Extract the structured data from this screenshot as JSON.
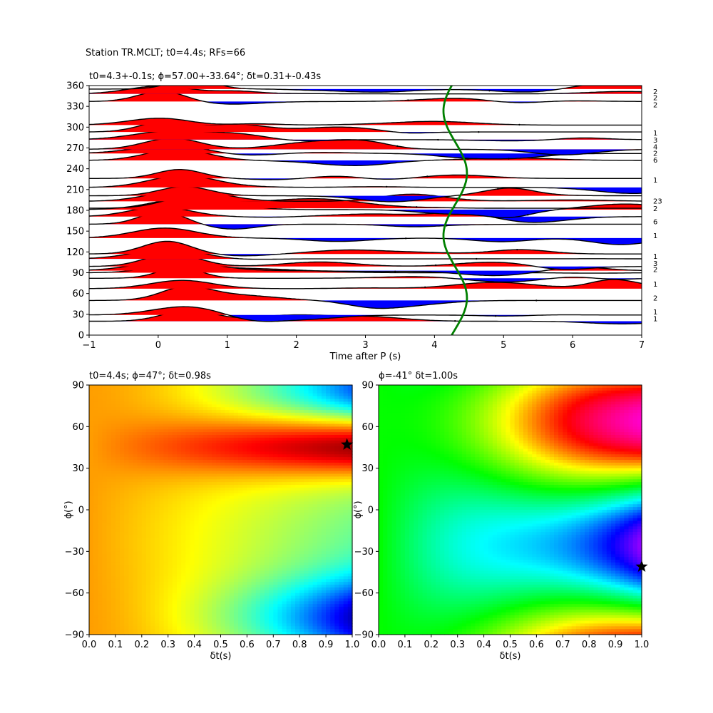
{
  "suptitle": "Station TR.MCLT; t0=4.4s; RFs=66",
  "chart_data": [
    {
      "type": "line",
      "title": "t0=4.3+-0.1s; ϕ=57.00+-33.64°; δt=0.31+-0.43s",
      "xlabel": "Time after P (s)",
      "ylabel": "",
      "xlim": [
        -1,
        7
      ],
      "ylim": [
        0,
        360
      ],
      "xticks": [
        "−1",
        "0",
        "1",
        "2",
        "3",
        "4",
        "5",
        "6",
        "7"
      ],
      "yticks": [
        "0",
        "30",
        "60",
        "90",
        "120",
        "150",
        "180",
        "210",
        "240",
        "270",
        "300",
        "330",
        "360"
      ],
      "fill_colors": {
        "positive": "#ff0000",
        "negative": "#0000ff"
      },
      "trace_color": "#000000",
      "curve_color": "#008000",
      "baz": [
        20,
        29,
        50,
        67,
        82,
        90,
        93,
        99,
        110,
        117,
        140,
        160,
        171,
        181,
        183,
        193,
        201,
        213,
        226,
        252,
        262,
        268,
        282,
        293,
        303,
        337,
        348,
        355
      ],
      "counts": [
        "1",
        "1",
        "2",
        "1",
        "2",
        "3",
        "1",
        "1",
        "1",
        "6",
        "2",
        "23",
        "23",
        "1",
        "3",
        "4",
        "2",
        "6",
        "2",
        "4",
        "3",
        "1",
        "2",
        "2",
        "1"
      ],
      "count_labels": [
        {
          "text": "1",
          "baz": 24
        },
        {
          "text": "1",
          "baz": 34
        },
        {
          "text": "2",
          "baz": 54
        },
        {
          "text": "1",
          "baz": 74
        },
        {
          "text": "2",
          "baz": 95
        },
        {
          "text": "3",
          "baz": 104
        },
        {
          "text": "1",
          "baz": 114
        },
        {
          "text": "1",
          "baz": 144
        },
        {
          "text": "6",
          "baz": 164
        },
        {
          "text": "2",
          "baz": 183
        },
        {
          "text": "23",
          "baz": 194
        },
        {
          "text": "1",
          "baz": 224
        },
        {
          "text": "6",
          "baz": 253
        },
        {
          "text": "2",
          "baz": 263
        },
        {
          "text": "4",
          "baz": 272
        },
        {
          "text": "3",
          "baz": 282
        },
        {
          "text": "1",
          "baz": 292
        },
        {
          "text": "2",
          "baz": 333
        },
        {
          "text": "2",
          "baz": 343
        },
        {
          "text": "2",
          "baz": 352
        }
      ],
      "curve": {
        "name": "",
        "t0": 4.3,
        "amplitude": 0.17,
        "phase_deg": 57
      }
    },
    {
      "type": "heatmap",
      "title": "t0=4.4s; ϕ=47°; δt=0.98s",
      "xlabel": "δt(s)",
      "ylabel": "ϕ(°)",
      "xlim": [
        0,
        1
      ],
      "ylim": [
        -90,
        90
      ],
      "xticks": [
        "0.0",
        "0.1",
        "0.2",
        "0.3",
        "0.4",
        "0.5",
        "0.6",
        "0.7",
        "0.8",
        "0.9",
        "1.0"
      ],
      "yticks": [
        "−90",
        "−60",
        "−30",
        "0",
        "30",
        "60",
        "90"
      ],
      "colormap": "jet",
      "best": {
        "dt": 0.98,
        "phi": 47
      }
    },
    {
      "type": "heatmap",
      "title": "ϕ=-41° δt=1.00s",
      "xlabel": "δt(s)",
      "ylabel": "ϕ(°)",
      "xlim": [
        0,
        1
      ],
      "ylim": [
        -90,
        90
      ],
      "xticks": [
        "0.0",
        "0.1",
        "0.2",
        "0.3",
        "0.4",
        "0.5",
        "0.6",
        "0.7",
        "0.8",
        "0.9",
        "1.0"
      ],
      "yticks": [
        "−90",
        "−60",
        "−30",
        "0",
        "30",
        "60",
        "90"
      ],
      "colormap": "hsv",
      "best": {
        "dt": 1.0,
        "phi": -41
      }
    }
  ]
}
